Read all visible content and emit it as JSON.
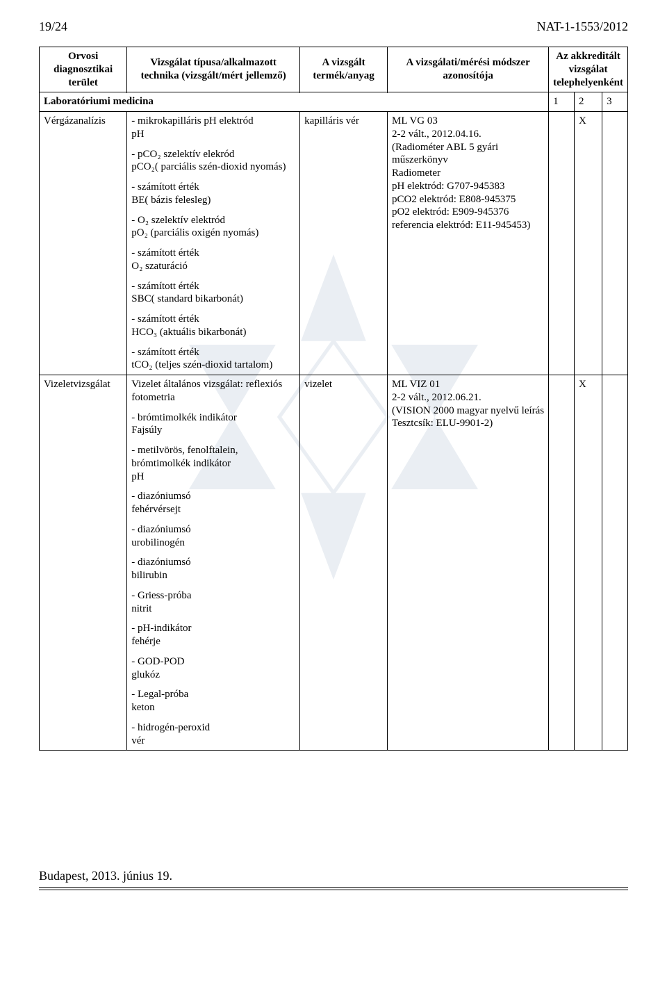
{
  "page_header": {
    "left": "19/24",
    "right": "NAT-1-1553/2012"
  },
  "table": {
    "head": {
      "c1": "Orvosi diagnosztikai terület",
      "c2": "Vizsgálat típusa/alkalmazott technika (vizsgált/mért jellemző)",
      "c3": "A vizsgált termék/anyag",
      "c4": "A vizsgálati/mérési módszer azonosítója",
      "c5": "Az akkreditált vizsgálat telephelyenként"
    },
    "subhead": {
      "lab": "Laboratóriumi medicina",
      "n1": "1",
      "n2": "2",
      "n3": "3"
    },
    "row1": {
      "area": "Vérgázanalízis",
      "tech": [
        "- mikrokapilláris pH elektród\npH",
        "- pCO₂ szelektív elekród\npCO₂( parciális szén-dioxid nyomás)",
        "- számított érték\nBE( bázis felesleg)",
        "- O₂ szelektív elektród\npO₂ (parciális oxigén nyomás)",
        "- számított érték\nO₂ szaturáció",
        "- számított érték\nSBC( standard bikarbonát)",
        "- számított érték\nHCO₃ (aktuális bikarbonát)",
        "- számított érték\ntCO₂ (teljes szén-dioxid tartalom)"
      ],
      "specimen": "kapilláris vér",
      "method": "ML VG 03\n2-2 vált., 2012.04.16.\n(Radiométer ABL 5 gyári műszerkönyv\nRadiometer\npH elektród: G707-945383\npCO2 elektród: E808-945375\npO2 elektród: E909-945376\nreferencia elektród: E11-945453)",
      "x1": "",
      "x2": "X",
      "x3": ""
    },
    "row2": {
      "area": "Vizeletvizsgálat",
      "tech": [
        "Vizelet általános vizsgálat: reflexiós fotometria",
        "- brómtimolkék indikátor\nFajsúly",
        "- metilvörös, fenolftalein, brómtimolkék indikátor\npH",
        "- diazóniumsó\nfehérvérsejt",
        "- diazóniumsó\nurobilinogén",
        "- diazóniumsó\nbilirubin",
        "- Griess-próba\nnitrit",
        "- pH-indikátor\nfehérje",
        "- GOD-POD\nglukóz",
        "- Legal-próba\nketon",
        "- hidrogén-peroxid\nvér"
      ],
      "specimen": "vizelet",
      "method": "ML VIZ 01\n2-2 vált., 2012.06.21.\n(VISION 2000 magyar nyelvű leírás\nTesztcsík: ELU-9901-2)",
      "x1": "",
      "x2": "X",
      "x3": ""
    }
  },
  "footer": "Budapest, 2013. június 19.",
  "watermark_color": "#5a7aa0"
}
